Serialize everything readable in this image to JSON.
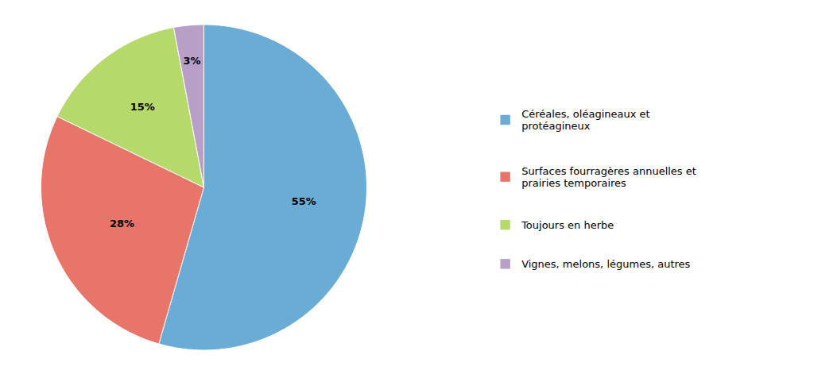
{
  "chart_data": {
    "type": "pie",
    "categories": [
      "Céréales, oléagineaux et\nprotéagineux",
      "Surfaces fourragères annuelles et\nprairies temporaires",
      "Toujours en herbe",
      "Vignes, melons, légumes, autres"
    ],
    "values": [
      55,
      28,
      15,
      3
    ],
    "value_labels": [
      "55%",
      "28%",
      "15%",
      "3%"
    ],
    "colors": [
      "#6bacd6",
      "#e8756a",
      "#b5d96b",
      "#b89fc8"
    ],
    "data_labels": true,
    "legend": "right"
  }
}
